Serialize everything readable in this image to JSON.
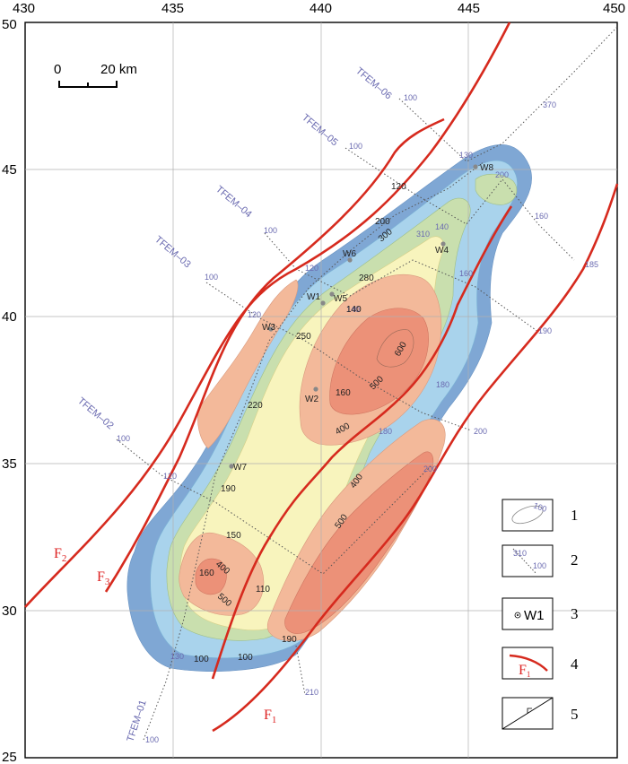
{
  "axes": {
    "x_ticks": [
      "430",
      "435",
      "440",
      "445",
      "450"
    ],
    "y_ticks": [
      "50",
      "45",
      "40",
      "35",
      "30",
      "25"
    ]
  },
  "scale_bar": {
    "start": "0",
    "end": "20 km"
  },
  "survey_lines": [
    {
      "name": "TFEM–06",
      "stations": [
        "100",
        "370"
      ]
    },
    {
      "name": "TFEM–05",
      "stations": [
        "100",
        "130",
        "200",
        "160",
        "185"
      ]
    },
    {
      "name": "TFEM–04",
      "stations": [
        "100",
        "120",
        "310",
        "140",
        "160",
        "190"
      ]
    },
    {
      "name": "TFEM–03",
      "stations": [
        "100",
        "120",
        "140",
        "180",
        "200"
      ]
    },
    {
      "name": "TFEM–02",
      "stations": [
        "100",
        "120",
        "180",
        "200"
      ]
    },
    {
      "name": "TFEM–01",
      "stations": [
        "100",
        "130",
        "210"
      ]
    }
  ],
  "contour_labels": [
    "100",
    "120",
    "140",
    "160",
    "190",
    "200",
    "220",
    "250",
    "280",
    "300",
    "400",
    "500",
    "600",
    "110",
    "150",
    "160",
    "400",
    "500",
    "100",
    "190",
    "500",
    "400"
  ],
  "wells": [
    "W1",
    "W2",
    "W3",
    "W4",
    "W5",
    "W6",
    "W7",
    "W8"
  ],
  "faults": [
    "F1",
    "F2",
    "F3"
  ],
  "legend": {
    "items": [
      {
        "number": "1",
        "sample": "100"
      },
      {
        "number": "2",
        "sample_a": "310",
        "sample_b": "100"
      },
      {
        "number": "3",
        "sample": "W1"
      },
      {
        "number": "4",
        "sample": "F1"
      },
      {
        "number": "5",
        "sample": ""
      }
    ]
  },
  "colors": {
    "band_outer": "#7fa7d4",
    "band_blue": "#a9d3ec",
    "band_green": "#c9dfae",
    "band_yellow": "#f8f4bd",
    "band_salmon": "#f3b99a",
    "band_core": "#ec9178",
    "fault": "#d62a1e",
    "survey": "#6a6ab0"
  }
}
